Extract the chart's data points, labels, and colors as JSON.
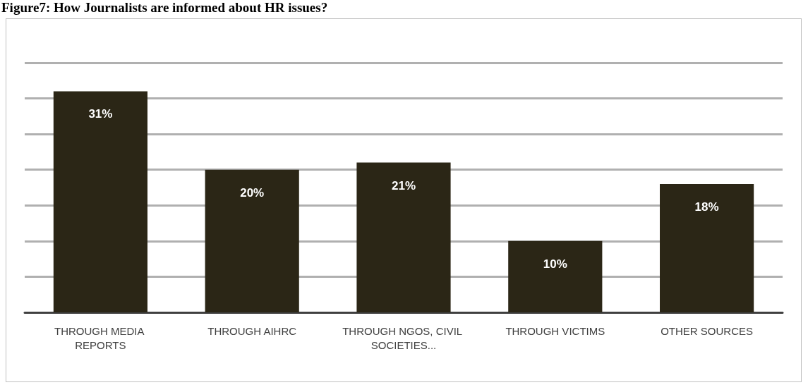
{
  "chart_data": {
    "type": "bar",
    "title": "Figure7: How Journalists are informed about HR issues?",
    "categories": [
      "THROUGH MEDIA REPORTS",
      "THROUGH AIHRC",
      "THROUGH NGOS, CIVIL SOCIETIES...",
      "THROUGH VICTIMS",
      "OTHER SOURCES"
    ],
    "values": [
      31,
      20,
      21,
      10,
      18
    ],
    "value_labels": [
      "31%",
      "20%",
      "21%",
      "10%",
      "18%"
    ],
    "color": "#2b2616",
    "ylim": [
      0,
      35
    ],
    "yticks": [
      {
        "value": 0,
        "label": null
      },
      {
        "value": 5,
        "label": null
      },
      {
        "value": 10,
        "label": null
      },
      {
        "value": 15,
        "label": null
      },
      {
        "value": 20,
        "label": null
      },
      {
        "value": 25,
        "label": null
      },
      {
        "value": 30,
        "label": null
      },
      {
        "value": 35,
        "label": null
      }
    ],
    "grid": "y",
    "tick_labels": "x"
  }
}
